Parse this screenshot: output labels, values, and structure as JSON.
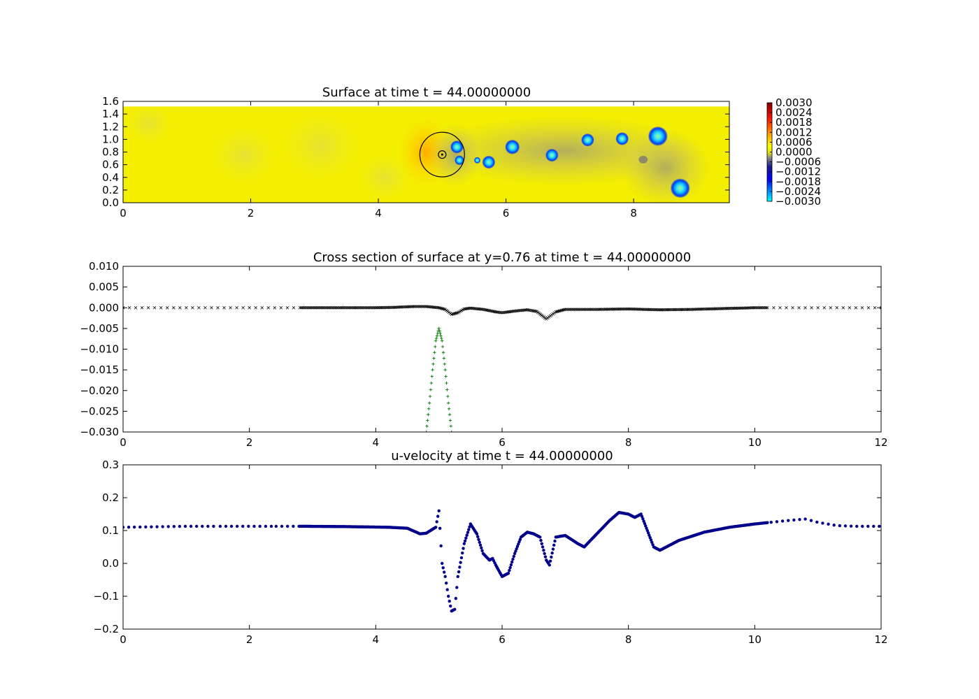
{
  "chart_data": [
    {
      "type": "heatmap",
      "title": "Surface at time t =    44.00000000",
      "x_ticks": [
        "0",
        "2",
        "4",
        "6",
        "8"
      ],
      "y_ticks": [
        "0.0",
        "0.2",
        "0.4",
        "0.6",
        "0.8",
        "1.0",
        "1.2",
        "1.4",
        "1.6"
      ],
      "xlim": [
        0,
        9.5
      ],
      "ylim": [
        0,
        1.6
      ],
      "domain_top": 1.52,
      "colorbar": {
        "min": -0.003,
        "max": 0.003,
        "tick_labels": [
          "0.0030",
          "0.0024",
          "0.0018",
          "0.0012",
          "0.0006",
          "0.0000",
          "−0.0006",
          "−0.0012",
          "−0.0018",
          "−0.0024",
          "−0.0030"
        ]
      },
      "background_color": "#f4ee00",
      "obstacle": {
        "x": 5.0,
        "y": 0.76,
        "outer_radius": 0.35,
        "inner_radius": 0.06
      },
      "vortices": [
        {
          "x": 5.23,
          "y": 0.88,
          "r": 0.08
        },
        {
          "x": 5.27,
          "y": 0.67,
          "r": 0.06
        },
        {
          "x": 5.55,
          "y": 0.67,
          "r": 0.04
        },
        {
          "x": 5.73,
          "y": 0.64,
          "r": 0.08
        },
        {
          "x": 6.1,
          "y": 0.88,
          "r": 0.09
        },
        {
          "x": 6.72,
          "y": 0.75,
          "r": 0.08
        },
        {
          "x": 7.28,
          "y": 0.99,
          "r": 0.08
        },
        {
          "x": 7.82,
          "y": 1.01,
          "r": 0.08
        },
        {
          "x": 8.38,
          "y": 1.05,
          "r": 0.12
        },
        {
          "x": 8.73,
          "y": 0.23,
          "r": 0.12
        }
      ]
    },
    {
      "type": "scatter",
      "title": "Cross section of surface at y=0.76 at time t =    44.00000000",
      "xlim": [
        0,
        12
      ],
      "ylim": [
        -0.03,
        0.01
      ],
      "x_ticks": [
        "0",
        "2",
        "4",
        "6",
        "8",
        "10",
        "12"
      ],
      "y_ticks": [
        "0.010",
        "0.005",
        "0.000",
        "−0.005",
        "−0.010",
        "−0.015",
        "−0.020",
        "−0.025",
        "−0.030"
      ],
      "series": [
        {
          "marker": "x",
          "color": "#000000",
          "x": [
            0,
            0.5,
            1,
            1.5,
            2,
            2.5,
            2.8,
            3,
            3.5,
            4,
            4.3,
            4.6,
            4.8,
            5,
            5.1,
            5.2,
            5.3,
            5.4,
            5.5,
            5.7,
            5.9,
            6.0,
            6.2,
            6.4,
            6.55,
            6.7,
            6.85,
            7.0,
            7.5,
            8.0,
            8.5,
            9,
            9.5,
            10,
            10.2,
            10.5,
            11,
            11.5,
            12
          ],
          "y": [
            0,
            0,
            0,
            0,
            0,
            0,
            0,
            0,
            0,
            0,
            0.0001,
            0.0003,
            0.0003,
            0,
            -0.0004,
            -0.0016,
            -0.0012,
            -0.0003,
            -0.0001,
            -0.0004,
            -0.001,
            -0.0012,
            -0.0008,
            -0.0005,
            -0.0009,
            -0.0027,
            -0.001,
            -0.0004,
            -0.0004,
            -0.0003,
            -0.0005,
            -0.0004,
            -0.0002,
            0,
            0,
            0,
            0,
            0,
            0
          ]
        },
        {
          "marker": "+",
          "color": "#007a00",
          "x": [
            4.8,
            4.85,
            4.9,
            4.95,
            5.0,
            5.05,
            5.1,
            5.15,
            5.2
          ],
          "y": [
            -0.03,
            -0.023,
            -0.015,
            -0.008,
            -0.005,
            -0.008,
            -0.015,
            -0.023,
            -0.03
          ]
        }
      ]
    },
    {
      "type": "scatter",
      "title": "u-velocity at time t =    44.00000000",
      "xlim": [
        0,
        12
      ],
      "ylim": [
        -0.2,
        0.3
      ],
      "x_ticks": [
        "0",
        "2",
        "4",
        "6",
        "8",
        "10",
        "12"
      ],
      "y_ticks": [
        "0.3",
        "0.2",
        "0.1",
        "0.0",
        "−0.1",
        "−0.2"
      ],
      "series": [
        {
          "marker": "o",
          "color": "#00008b",
          "x": [
            0,
            1,
            2,
            2.8,
            3.5,
            4.2,
            4.5,
            4.7,
            4.8,
            4.95,
            5.0,
            5.05,
            5.1,
            5.15,
            5.2,
            5.25,
            5.3,
            5.4,
            5.5,
            5.6,
            5.7,
            5.8,
            5.85,
            5.9,
            6.0,
            6.1,
            6.2,
            6.3,
            6.4,
            6.5,
            6.6,
            6.7,
            6.75,
            6.85,
            7.0,
            7.2,
            7.3,
            7.5,
            7.7,
            7.85,
            8.0,
            8.1,
            8.2,
            8.3,
            8.4,
            8.5,
            8.8,
            9.2,
            9.6,
            10.0,
            10.2,
            10.5,
            10.8,
            11.0,
            11.3,
            11.6,
            12.0
          ],
          "y": [
            0.11,
            0.113,
            0.113,
            0.113,
            0.112,
            0.11,
            0.107,
            0.09,
            0.092,
            0.11,
            0.16,
            0.0,
            -0.04,
            -0.1,
            -0.145,
            -0.14,
            -0.04,
            0.06,
            0.12,
            0.09,
            0.03,
            0.01,
            0.015,
            -0.005,
            -0.04,
            -0.03,
            0.03,
            0.08,
            0.095,
            0.09,
            0.08,
            0.01,
            -0.005,
            0.08,
            0.085,
            0.06,
            0.05,
            0.09,
            0.13,
            0.155,
            0.15,
            0.14,
            0.15,
            0.1,
            0.05,
            0.04,
            0.07,
            0.095,
            0.11,
            0.12,
            0.124,
            0.13,
            0.135,
            0.125,
            0.115,
            0.113,
            0.113
          ]
        }
      ]
    }
  ]
}
